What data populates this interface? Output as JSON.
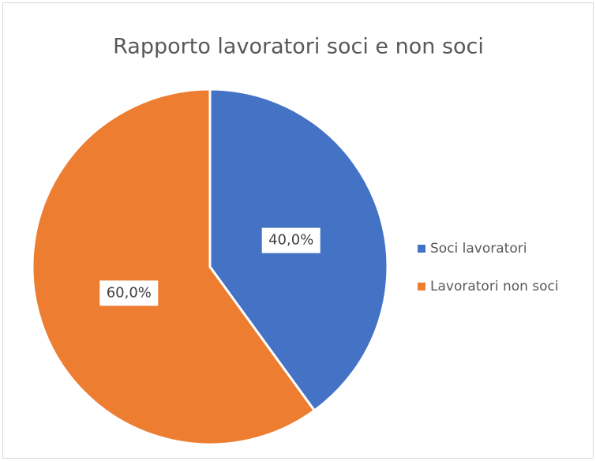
{
  "chart_data": {
    "type": "pie",
    "title": "Rapporto lavoratori soci e non soci",
    "categories": [
      "Soci lavoratori",
      "Lavoratori non soci"
    ],
    "values": [
      40,
      60
    ],
    "value_labels": [
      "40,0%",
      "60,0%"
    ],
    "colors": [
      "#4472c4",
      "#ed7d31"
    ],
    "legend": "right"
  }
}
